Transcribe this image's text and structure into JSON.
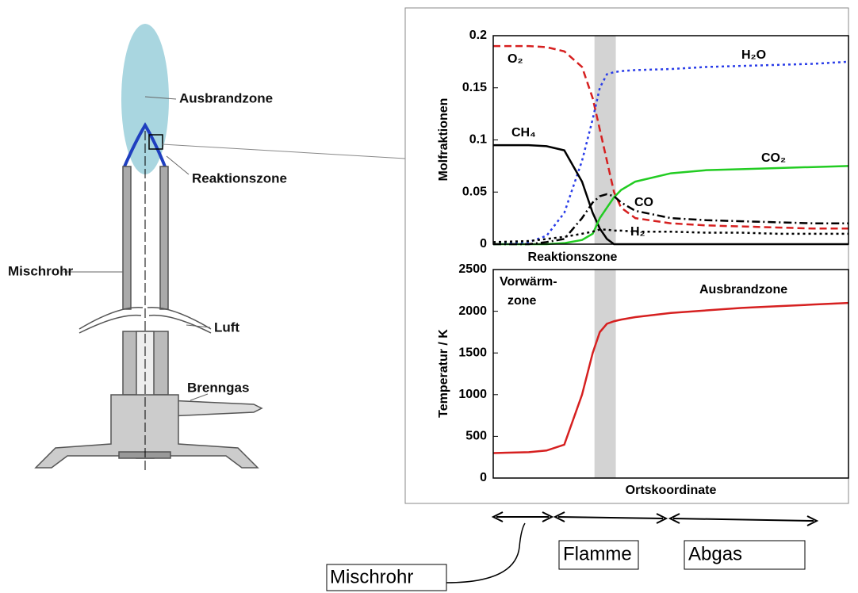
{
  "diagram": {
    "labels": [
      "Ausbrandzone",
      "Reaktionszone",
      "Mischrohr",
      "Luft",
      "Brenngas"
    ]
  },
  "phases": [
    "Mischrohr",
    "Flamme",
    "Abgas"
  ],
  "chart_data": [
    {
      "type": "line",
      "y_label": "Molfraktionen",
      "x_label": "Reaktionszone",
      "x": [
        0,
        10,
        15,
        20,
        25,
        28,
        30,
        32,
        34,
        36,
        40,
        50,
        60,
        70,
        80,
        90,
        100
      ],
      "xlim": [
        0,
        100
      ],
      "ylim": [
        0,
        0.2
      ],
      "yticks": [
        0,
        0.05,
        0.1,
        0.15,
        0.2
      ],
      "highlight": [
        28.5,
        34.5
      ],
      "highlight_color": "#c8c8c8",
      "series": [
        {
          "name": "O₂",
          "color": "#d62020",
          "dash": "dashed",
          "values": [
            0.19,
            0.19,
            0.189,
            0.185,
            0.17,
            0.14,
            0.11,
            0.08,
            0.05,
            0.035,
            0.025,
            0.02,
            0.018,
            0.017,
            0.016,
            0.015,
            0.015
          ]
        },
        {
          "name": "H₂O",
          "color": "#2a3de8",
          "dash": "dotted",
          "values": [
            0,
            0.002,
            0.008,
            0.03,
            0.08,
            0.12,
            0.15,
            0.163,
            0.165,
            0.166,
            0.167,
            0.168,
            0.17,
            0.171,
            0.172,
            0.173,
            0.175
          ]
        },
        {
          "name": "CH₄",
          "color": "#000000",
          "dash": "solid",
          "values": [
            0.095,
            0.095,
            0.094,
            0.09,
            0.06,
            0.03,
            0.015,
            0.005,
            0,
            0,
            0,
            0,
            0,
            0,
            0,
            0,
            0
          ]
        },
        {
          "name": "CO₂",
          "color": "#22cc22",
          "dash": "solid",
          "values": [
            0,
            0,
            0,
            0.001,
            0.004,
            0.01,
            0.025,
            0.035,
            0.045,
            0.052,
            0.06,
            0.068,
            0.071,
            0.072,
            0.073,
            0.074,
            0.075
          ]
        },
        {
          "name": "CO",
          "color": "#000000",
          "dash": "dashdot",
          "values": [
            0,
            0,
            0.002,
            0.005,
            0.025,
            0.04,
            0.046,
            0.048,
            0.046,
            0.04,
            0.032,
            0.025,
            0.023,
            0.022,
            0.021,
            0.02,
            0.02
          ]
        },
        {
          "name": "H₂",
          "color": "#000000",
          "dash": "dotted",
          "values": [
            0.002,
            0.003,
            0.005,
            0.007,
            0.01,
            0.012,
            0.014,
            0.014,
            0.013,
            0.013,
            0.012,
            0.012,
            0.011,
            0.011,
            0.01,
            0.01,
            0.01
          ]
        }
      ]
    },
    {
      "type": "line",
      "y_label": "Temperatur / K",
      "x_label": "Ortskoordinate",
      "annotations": [
        "Vorwärm-",
        "zone",
        "Ausbrandzone"
      ],
      "x": [
        0,
        10,
        15,
        20,
        25,
        28,
        30,
        32,
        34,
        36,
        40,
        50,
        60,
        70,
        80,
        90,
        100
      ],
      "xlim": [
        0,
        100
      ],
      "ylim": [
        0,
        2500
      ],
      "yticks": [
        0,
        500,
        1000,
        1500,
        2000,
        2500
      ],
      "highlight": [
        28.5,
        34.5
      ],
      "highlight_color": "#c8c8c8",
      "series": [
        {
          "name": "T",
          "color": "#d62020",
          "dash": "solid",
          "values": [
            300,
            310,
            330,
            400,
            1000,
            1500,
            1750,
            1850,
            1880,
            1900,
            1930,
            1980,
            2010,
            2040,
            2060,
            2080,
            2100
          ]
        }
      ]
    }
  ]
}
